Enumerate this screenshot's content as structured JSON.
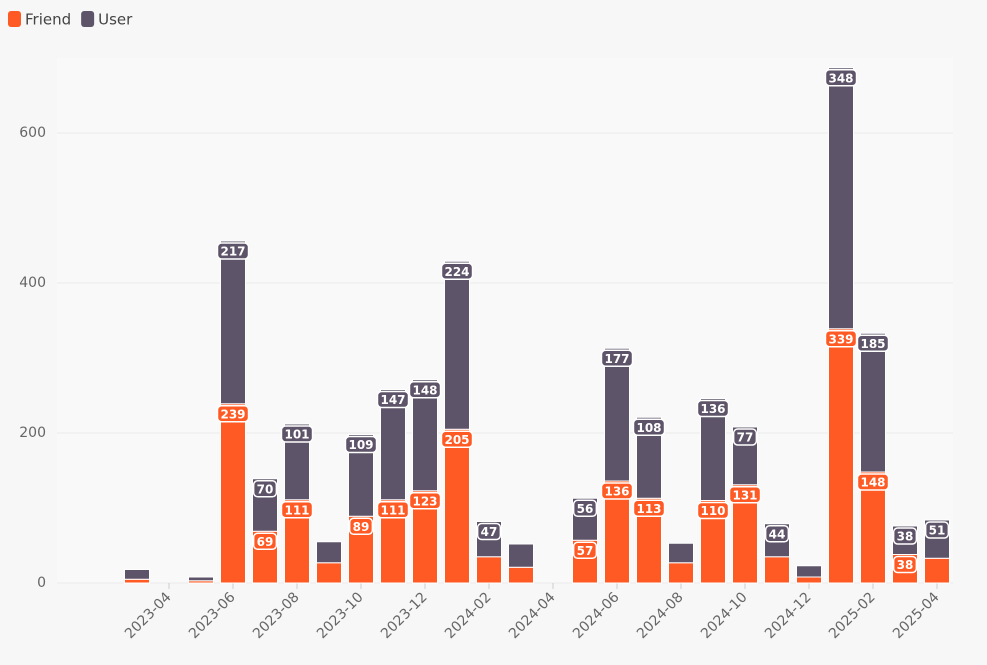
{
  "chart_data": {
    "type": "stacked_bar",
    "categories": [
      null,
      null,
      null,
      "2023-04",
      null,
      "2023-06",
      null,
      "2023-08",
      null,
      "2023-10",
      null,
      "2023-12",
      null,
      "2024-02",
      null,
      "2024-04",
      null,
      "2024-06",
      null,
      "2024-08",
      null,
      "2024-10",
      null,
      "2024-12",
      null,
      "2025-02",
      null,
      "2025-04"
    ],
    "series": [
      {
        "name": "Friend",
        "color": "#ff5a23",
        "values": [
          null,
          null,
          5,
          null,
          3,
          239,
          69,
          111,
          27,
          89,
          111,
          123,
          205,
          35,
          21,
          null,
          57,
          136,
          113,
          27,
          110,
          131,
          35,
          8,
          339,
          148,
          38,
          33
        ]
      },
      {
        "name": "User",
        "color": "#5e5469",
        "values": [
          null,
          null,
          13,
          null,
          5,
          217,
          70,
          101,
          28,
          109,
          147,
          148,
          224,
          47,
          31,
          null,
          56,
          177,
          108,
          26,
          136,
          77,
          44,
          15,
          348,
          185,
          38,
          51
        ]
      }
    ],
    "ylim": [
      0,
      700
    ],
    "yticks": [
      0,
      200,
      400,
      600
    ],
    "grid": true,
    "legend": "top-left"
  }
}
